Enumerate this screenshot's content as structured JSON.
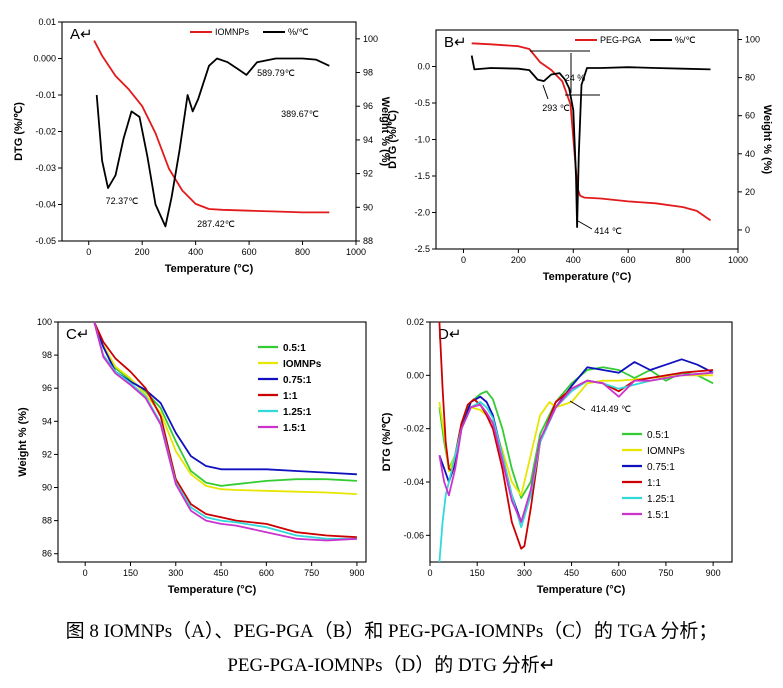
{
  "caption": {
    "line1": "图 8 IOMNPs（A）、PEG-PGA（B）和 PEG-PGA-IOMNPs（C）的 TGA 分析；",
    "line2": "PEG-PGA-IOMNPs（D）的 DTG 分析↵"
  },
  "chart_data": [
    {
      "id": "A",
      "type": "line",
      "panel_label": "A↵",
      "xlabel": "Temperature (°C)",
      "ylabel_left": "DTG (%/℃)",
      "ylabel_right": "Weight % (%)",
      "xlim": [
        -100,
        1000
      ],
      "ylim_left": [
        -0.05,
        0.01
      ],
      "ylim_right": [
        88,
        101
      ],
      "x_ticks": [
        0,
        200,
        400,
        600,
        800,
        1000
      ],
      "y_ticks_left": [
        0.01,
        0.0,
        -0.01,
        -0.02,
        -0.03,
        -0.04,
        -0.05
      ],
      "y_ticks_right": [
        88,
        90,
        92,
        94,
        96,
        98,
        100
      ],
      "x_tick_labels": [
        "0",
        "200",
        "400",
        "600",
        "800",
        "1000"
      ],
      "y_tick_labels_left": [
        "0.01",
        "0.000",
        "-0.01",
        "-0.02",
        "-0.03",
        "-0.04",
        "-0.05"
      ],
      "y_tick_labels_right": [
        "88",
        "90",
        "92",
        "94",
        "96",
        "98",
        "100"
      ],
      "legend": {
        "placement": "top-right",
        "entries": [
          {
            "name": "IOMNPs",
            "color": "#e31a1c"
          },
          {
            "name": "%/℃",
            "color": "#000000"
          }
        ]
      },
      "series": [
        {
          "name": "IOMNPs",
          "axis": "right",
          "color": "#e31a1c",
          "x": [
            20,
            50,
            100,
            150,
            200,
            250,
            300,
            350,
            400,
            450,
            500,
            600,
            700,
            800,
            900
          ],
          "y": [
            99.9,
            99.0,
            97.8,
            97.0,
            96.0,
            94.4,
            92.3,
            91.0,
            90.2,
            89.9,
            89.85,
            89.8,
            89.75,
            89.7,
            89.7
          ]
        },
        {
          "name": "%/℃",
          "axis": "left",
          "color": "#000000",
          "x": [
            30,
            50,
            72,
            100,
            130,
            160,
            190,
            220,
            250,
            287,
            310,
            340,
            370,
            389,
            410,
            450,
            480,
            520,
            560,
            590,
            630,
            700,
            800,
            850,
            900
          ],
          "y": [
            -0.01,
            -0.028,
            -0.0355,
            -0.032,
            -0.022,
            -0.0145,
            -0.016,
            -0.027,
            -0.04,
            -0.046,
            -0.038,
            -0.025,
            -0.01,
            -0.0145,
            -0.011,
            -0.002,
            0.0,
            -0.001,
            -0.003,
            -0.0045,
            -0.001,
            0.0,
            0.0,
            -0.0003,
            -0.002
          ]
        }
      ],
      "annotations": [
        "72.37℃",
        "287.42℃",
        "389.67℃",
        "589.79℃"
      ]
    },
    {
      "id": "B",
      "type": "line",
      "panel_label": "B↵",
      "xlabel": "Temperature (°C)",
      "ylabel_left": "DTG (%/℃)",
      "ylabel_right": "Weight % (%)",
      "xlim": [
        -100,
        1000
      ],
      "ylim_left": [
        -2.5,
        0.5
      ],
      "ylim_right": [
        -10,
        105
      ],
      "x_ticks": [
        0,
        200,
        400,
        600,
        800,
        1000
      ],
      "y_ticks_left": [
        0.0,
        -0.5,
        -1.0,
        -1.5,
        -2.0,
        -2.5
      ],
      "y_ticks_right": [
        0,
        20,
        40,
        60,
        80,
        100
      ],
      "x_tick_labels": [
        "0",
        "200",
        "400",
        "600",
        "800",
        "1000"
      ],
      "y_tick_labels_left": [
        "0.0",
        "-0.5",
        "-1.0",
        "-1.5",
        "-2.0",
        "-2.5"
      ],
      "y_tick_labels_right": [
        "0",
        "20",
        "40",
        "60",
        "80",
        "100"
      ],
      "legend": {
        "placement": "top-right",
        "entries": [
          {
            "name": "PEG-PGA",
            "color": "#e31a1c"
          },
          {
            "name": "%/℃",
            "color": "#000000"
          }
        ]
      },
      "series": [
        {
          "name": "PEG-PGA",
          "axis": "right",
          "color": "#e31a1c",
          "x": [
            30,
            100,
            200,
            240,
            280,
            320,
            360,
            390,
            405,
            415,
            425,
            440,
            500,
            600,
            700,
            800,
            850,
            900
          ],
          "y": [
            98,
            97.5,
            96.5,
            95,
            88,
            84,
            78,
            66,
            40,
            22,
            18,
            17,
            16.5,
            15,
            14,
            12,
            10,
            5
          ]
        },
        {
          "name": "%/℃",
          "axis": "left",
          "color": "#000000",
          "x": [
            30,
            35,
            40,
            100,
            200,
            240,
            270,
            293,
            320,
            350,
            370,
            385,
            400,
            410,
            414,
            420,
            430,
            450,
            500,
            600,
            700,
            800,
            900
          ],
          "y": [
            0.15,
            0.05,
            -0.04,
            -0.02,
            -0.03,
            -0.05,
            -0.18,
            -0.2,
            -0.11,
            -0.09,
            -0.18,
            -0.3,
            -0.6,
            -1.5,
            -2.2,
            -1.2,
            -0.25,
            -0.02,
            -0.02,
            -0.01,
            -0.02,
            -0.03,
            -0.04
          ]
        }
      ],
      "annotations": [
        "293 ℃",
        "24 %",
        "414 ℃"
      ]
    },
    {
      "id": "C",
      "type": "line",
      "panel_label": "C↵",
      "xlabel": "Temperature (°C)",
      "ylabel": "Weight % (%)",
      "xlim": [
        -90,
        930
      ],
      "ylim": [
        85.5,
        100
      ],
      "x_ticks": [
        0,
        150,
        300,
        450,
        600,
        750,
        900
      ],
      "y_ticks": [
        86,
        88,
        90,
        92,
        94,
        96,
        98,
        100
      ],
      "x_tick_labels": [
        "0",
        "150",
        "300",
        "450",
        "600",
        "750",
        "900"
      ],
      "y_tick_labels": [
        "86",
        "88",
        "90",
        "92",
        "94",
        "96",
        "98",
        "100"
      ],
      "legend": {
        "placement": "top-right"
      },
      "series": [
        {
          "name": "0.5:1",
          "color": "#33cc33",
          "x": [
            30,
            60,
            100,
            150,
            200,
            250,
            300,
            350,
            400,
            450,
            500,
            600,
            700,
            800,
            900
          ],
          "y": [
            100,
            98.5,
            97.2,
            96.5,
            95.8,
            94.8,
            92.8,
            91.0,
            90.3,
            90.1,
            90.2,
            90.4,
            90.5,
            90.5,
            90.4
          ]
        },
        {
          "name": "IOMNPs",
          "color": "#e6e600",
          "x": [
            30,
            60,
            100,
            150,
            200,
            250,
            300,
            350,
            400,
            450,
            500,
            600,
            700,
            800,
            900
          ],
          "y": [
            100,
            98.6,
            97.3,
            96.6,
            95.6,
            94.5,
            92.2,
            90.8,
            90.1,
            89.9,
            89.85,
            89.8,
            89.75,
            89.7,
            89.6
          ]
        },
        {
          "name": "0.75:1",
          "color": "#1010c0",
          "x": [
            30,
            60,
            100,
            150,
            200,
            250,
            300,
            350,
            400,
            450,
            500,
            600,
            700,
            800,
            900
          ],
          "y": [
            100,
            98.5,
            97.0,
            96.4,
            95.9,
            95.1,
            93.3,
            91.9,
            91.3,
            91.1,
            91.1,
            91.1,
            91.0,
            90.9,
            90.8
          ]
        },
        {
          "name": "1:1",
          "color": "#cc0000",
          "x": [
            30,
            60,
            100,
            150,
            200,
            250,
            300,
            350,
            400,
            450,
            500,
            600,
            700,
            800,
            900
          ],
          "y": [
            100,
            98.8,
            97.8,
            97.0,
            96.0,
            94.3,
            90.5,
            89.0,
            88.4,
            88.2,
            88.0,
            87.8,
            87.3,
            87.1,
            87.0
          ]
        },
        {
          "name": "1.25:1",
          "color": "#33d9d9",
          "x": [
            30,
            60,
            100,
            150,
            200,
            250,
            300,
            350,
            400,
            450,
            500,
            600,
            700,
            800,
            900
          ],
          "y": [
            100,
            98.0,
            97.0,
            96.3,
            95.5,
            93.9,
            90.3,
            88.8,
            88.2,
            88.0,
            87.9,
            87.6,
            87.1,
            86.9,
            86.9
          ]
        },
        {
          "name": "1.5:1",
          "color": "#cc33cc",
          "x": [
            30,
            60,
            100,
            150,
            200,
            250,
            300,
            350,
            400,
            450,
            500,
            600,
            700,
            800,
            900
          ],
          "y": [
            100,
            97.9,
            96.9,
            96.2,
            95.4,
            93.8,
            90.2,
            88.6,
            88.0,
            87.8,
            87.7,
            87.3,
            86.9,
            86.8,
            86.9
          ]
        }
      ]
    },
    {
      "id": "D",
      "type": "line",
      "panel_label": "D↵",
      "xlabel": "Temperature (°C)",
      "ylabel": "DTG (%/℃)",
      "xlim": [
        0,
        960
      ],
      "ylim": [
        -0.07,
        0.02
      ],
      "x_ticks": [
        0,
        150,
        300,
        450,
        600,
        750,
        900
      ],
      "y_ticks": [
        0.02,
        0.0,
        -0.02,
        -0.04,
        -0.06
      ],
      "x_tick_labels": [
        "0",
        "150",
        "300",
        "450",
        "600",
        "750",
        "900"
      ],
      "y_tick_labels": [
        "0.02",
        "0.00",
        "-0.02",
        "-0.04",
        "-0.06"
      ],
      "legend": {
        "placement": "center-left"
      },
      "series": [
        {
          "name": "0.5:1",
          "color": "#33cc33",
          "x": [
            30,
            45,
            60,
            80,
            100,
            130,
            160,
            180,
            200,
            230,
            260,
            290,
            320,
            350,
            400,
            450,
            500,
            550,
            600,
            650,
            700,
            750,
            800,
            850,
            900
          ],
          "y": [
            -0.012,
            -0.025,
            -0.035,
            -0.03,
            -0.018,
            -0.01,
            -0.007,
            -0.006,
            -0.009,
            -0.02,
            -0.035,
            -0.046,
            -0.04,
            -0.022,
            -0.01,
            -0.003,
            0.002,
            0.003,
            0.002,
            -0.001,
            0.002,
            -0.002,
            0.001,
            0.0,
            -0.003
          ]
        },
        {
          "name": "IOMNPs",
          "color": "#e6e600",
          "x": [
            30,
            45,
            60,
            80,
            100,
            130,
            160,
            180,
            200,
            230,
            260,
            290,
            320,
            350,
            380,
            400,
            450,
            500,
            550,
            600,
            700,
            800,
            900
          ],
          "y": [
            -0.01,
            -0.022,
            -0.036,
            -0.03,
            -0.02,
            -0.012,
            -0.013,
            -0.015,
            -0.018,
            -0.028,
            -0.04,
            -0.045,
            -0.03,
            -0.015,
            -0.01,
            -0.012,
            -0.01,
            -0.003,
            -0.002,
            -0.002,
            -0.001,
            0.0,
            0.0
          ]
        },
        {
          "name": "0.75:1",
          "color": "#1010c0",
          "x": [
            30,
            45,
            60,
            80,
            100,
            130,
            160,
            180,
            200,
            230,
            260,
            290,
            320,
            350,
            400,
            450,
            500,
            550,
            600,
            650,
            700,
            750,
            800,
            850,
            900
          ],
          "y": [
            -0.03,
            -0.035,
            -0.04,
            -0.033,
            -0.02,
            -0.01,
            -0.008,
            -0.01,
            -0.015,
            -0.03,
            -0.045,
            -0.055,
            -0.045,
            -0.025,
            -0.012,
            -0.004,
            0.003,
            0.002,
            0.001,
            0.005,
            0.002,
            0.004,
            0.006,
            0.004,
            0.001
          ]
        },
        {
          "name": "1:1",
          "color": "#cc0000",
          "x": [
            30,
            40,
            50,
            60,
            70,
            80,
            100,
            120,
            140,
            160,
            180,
            200,
            230,
            260,
            290,
            300,
            320,
            350,
            400,
            450,
            500,
            550,
            600,
            650,
            700,
            800,
            900
          ],
          "y": [
            0.02,
            -0.005,
            -0.025,
            -0.035,
            -0.036,
            -0.03,
            -0.018,
            -0.011,
            -0.009,
            -0.011,
            -0.015,
            -0.02,
            -0.035,
            -0.055,
            -0.065,
            -0.064,
            -0.05,
            -0.025,
            -0.01,
            -0.005,
            -0.002,
            -0.003,
            -0.006,
            -0.002,
            -0.001,
            0.001,
            0.002
          ]
        },
        {
          "name": "1.25:1",
          "color": "#33d9d9",
          "x": [
            30,
            40,
            50,
            60,
            80,
            100,
            130,
            160,
            180,
            200,
            230,
            260,
            290,
            320,
            350,
            400,
            450,
            500,
            550,
            600,
            700,
            800,
            900
          ],
          "y": [
            -0.07,
            -0.055,
            -0.045,
            -0.04,
            -0.03,
            -0.02,
            -0.012,
            -0.01,
            -0.012,
            -0.016,
            -0.03,
            -0.045,
            -0.057,
            -0.045,
            -0.025,
            -0.012,
            -0.006,
            -0.002,
            -0.003,
            -0.005,
            -0.002,
            0.0,
            0.001
          ]
        },
        {
          "name": "1.5:1",
          "color": "#cc33cc",
          "x": [
            30,
            45,
            60,
            80,
            100,
            130,
            160,
            180,
            200,
            230,
            260,
            290,
            320,
            350,
            400,
            450,
            500,
            550,
            600,
            650,
            700,
            800,
            900
          ],
          "y": [
            -0.03,
            -0.04,
            -0.045,
            -0.035,
            -0.02,
            -0.012,
            -0.011,
            -0.014,
            -0.018,
            -0.032,
            -0.047,
            -0.055,
            -0.043,
            -0.024,
            -0.012,
            -0.005,
            -0.002,
            -0.003,
            -0.008,
            -0.002,
            -0.002,
            0.0,
            0.001
          ]
        }
      ],
      "annotations": [
        "414.49 ℃"
      ]
    }
  ]
}
